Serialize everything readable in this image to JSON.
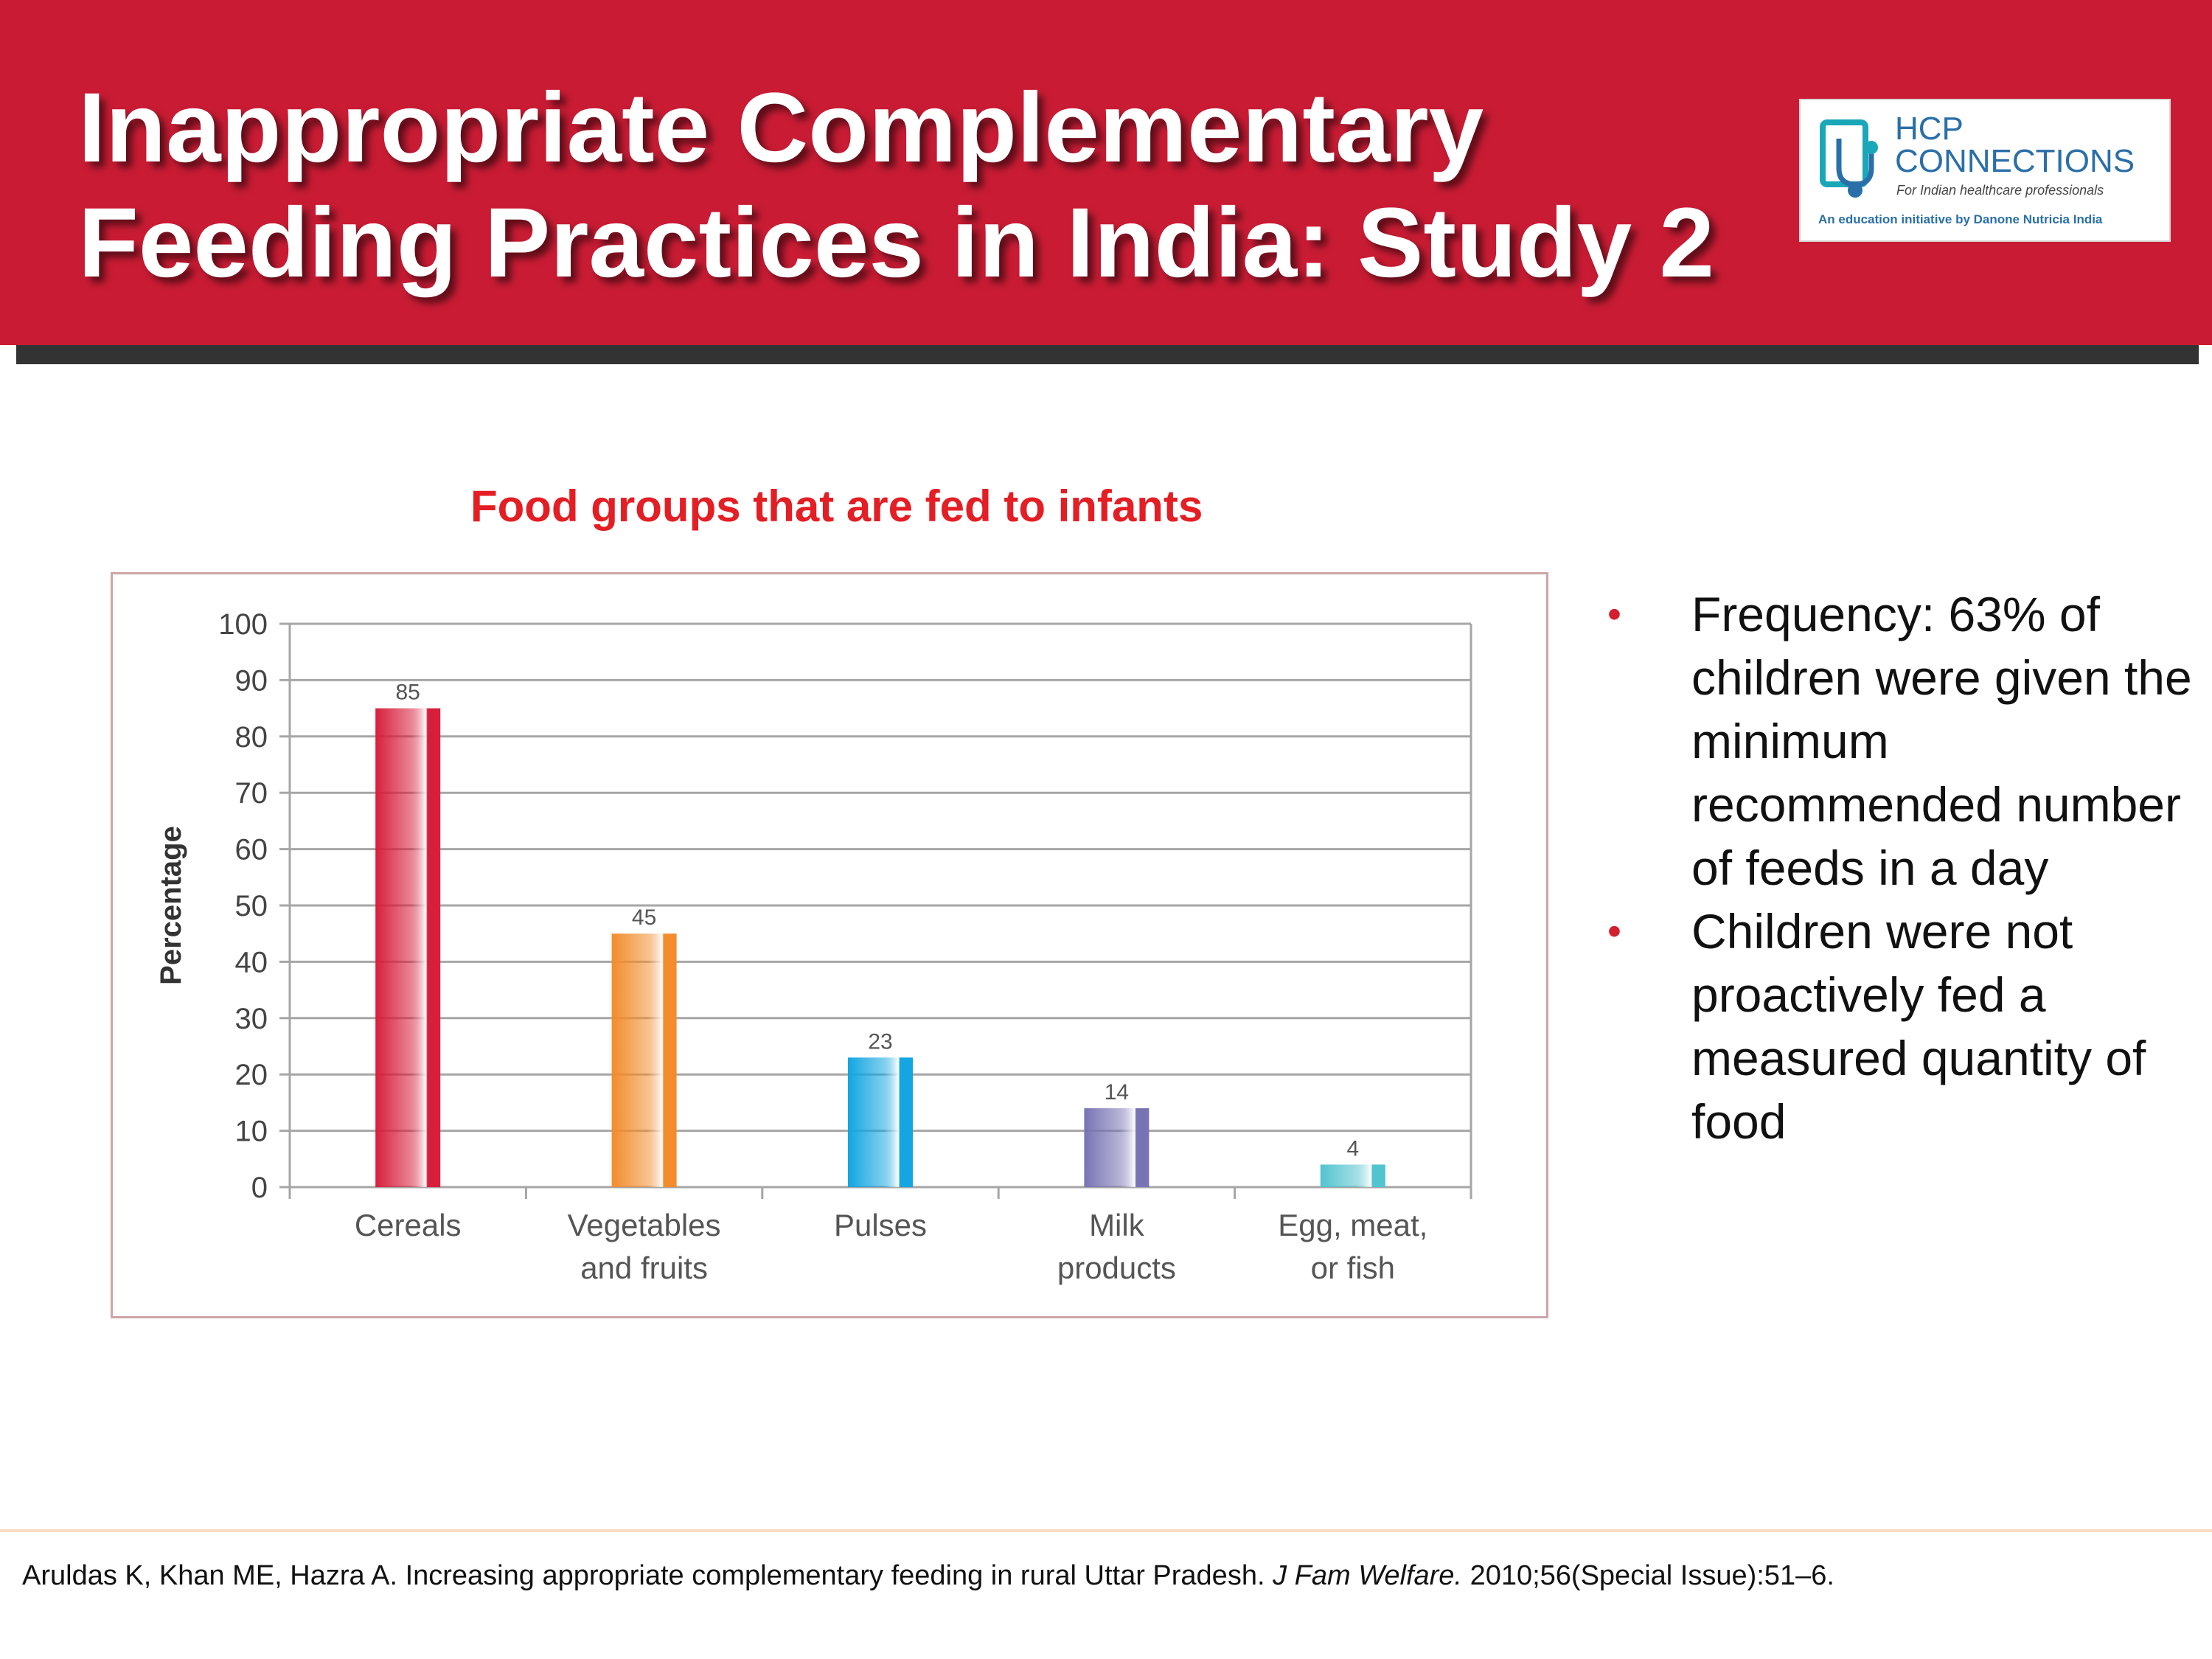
{
  "header": {
    "title_line1": "Inappropriate Complementary",
    "title_line2": "Feeding Practices in India: Study 2",
    "bg_color": "#c91c34"
  },
  "logo": {
    "icon": "stethoscope-tablet-icon",
    "line1": "HCP",
    "line2": "CONNECTIONS",
    "tagline": "For Indian healthcare professionals",
    "initiative": "An education initiative by Danone Nutricia India"
  },
  "chart_heading": "Food groups that are fed to infants",
  "chart_data": {
    "type": "bar",
    "title": "Food groups that are fed to infants",
    "categories": [
      "Cereals",
      "Vegetables and fruits",
      "Pulses",
      "Milk products",
      "Egg, meat, or fish"
    ],
    "category_labels": [
      [
        "Cereals"
      ],
      [
        "Vegetables",
        "and fruits"
      ],
      [
        "Pulses"
      ],
      [
        "Milk",
        "products"
      ],
      [
        "Egg, meat,",
        "or fish"
      ]
    ],
    "values": [
      85,
      45,
      23,
      14,
      4
    ],
    "bar_colors": [
      "#d71f3c",
      "#f28c2c",
      "#13a6e0",
      "#7874b4",
      "#52c4cf"
    ],
    "xlabel": "",
    "ylabel": "Percentage",
    "ylim": [
      0,
      100
    ],
    "yticks": [
      0,
      10,
      20,
      30,
      40,
      50,
      60,
      70,
      80,
      90,
      100
    ],
    "grid": true
  },
  "bullets": [
    "Frequency: 63% of children were given the minimum recommended number of feeds in a day",
    "Children were not proactively fed a measured quantity of food"
  ],
  "bullet_symbol": "•",
  "citation": {
    "authors": "Aruldas K, Khan ME, Hazra A. Increasing appropriate complementary feeding in rural Uttar Pradesh.",
    "journal": "J Fam Welfare.",
    "details": "2010;56(Special Issue):51–6."
  }
}
